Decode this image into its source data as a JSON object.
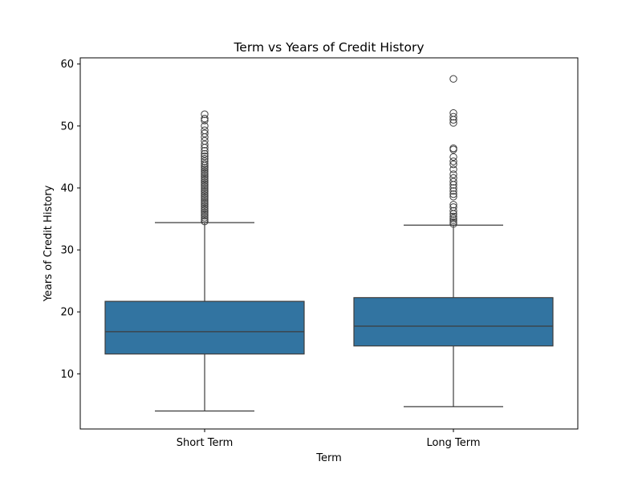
{
  "chart_data": {
    "type": "box",
    "title": "Term vs Years of Credit History",
    "xlabel": "Term",
    "ylabel": "Years of Credit History",
    "ylim": [
      1.1,
      61
    ],
    "yticks": [
      10,
      20,
      30,
      40,
      50,
      60
    ],
    "grid": false,
    "legend": "none",
    "box_color": "#3274a1",
    "line_color": "#3d3d3d",
    "categories": [
      "Short Term",
      "Long Term"
    ],
    "boxes": [
      {
        "category": "Short Term",
        "whisker_low": 4.0,
        "q1": 13.2,
        "median": 16.8,
        "q3": 21.7,
        "whisker_high": 34.4,
        "outliers": [
          34.6,
          34.9,
          35.2,
          35.5,
          35.8,
          36.1,
          36.4,
          36.7,
          37.0,
          37.3,
          37.6,
          37.9,
          38.2,
          38.5,
          38.8,
          39.1,
          39.4,
          39.7,
          40.0,
          40.3,
          40.6,
          40.9,
          41.2,
          41.5,
          41.8,
          42.1,
          42.4,
          42.7,
          43.0,
          43.3,
          43.6,
          43.9,
          44.3,
          44.7,
          45.1,
          45.5,
          46.0,
          46.5,
          47.0,
          47.6,
          48.2,
          48.8,
          49.3,
          50.0,
          50.9,
          51.2,
          51.9
        ]
      },
      {
        "category": "Long Term",
        "whisker_low": 4.7,
        "q1": 14.5,
        "median": 17.7,
        "q3": 22.3,
        "whisker_high": 34.0,
        "outliers": [
          34.2,
          34.5,
          34.8,
          35.1,
          35.4,
          35.8,
          36.3,
          36.9,
          37.3,
          38.6,
          39.0,
          39.5,
          40.0,
          40.5,
          41.0,
          41.6,
          42.2,
          43.0,
          43.8,
          44.3,
          45.0,
          46.2,
          46.4,
          50.5,
          51.0,
          51.5,
          52.1,
          57.6
        ]
      }
    ]
  }
}
